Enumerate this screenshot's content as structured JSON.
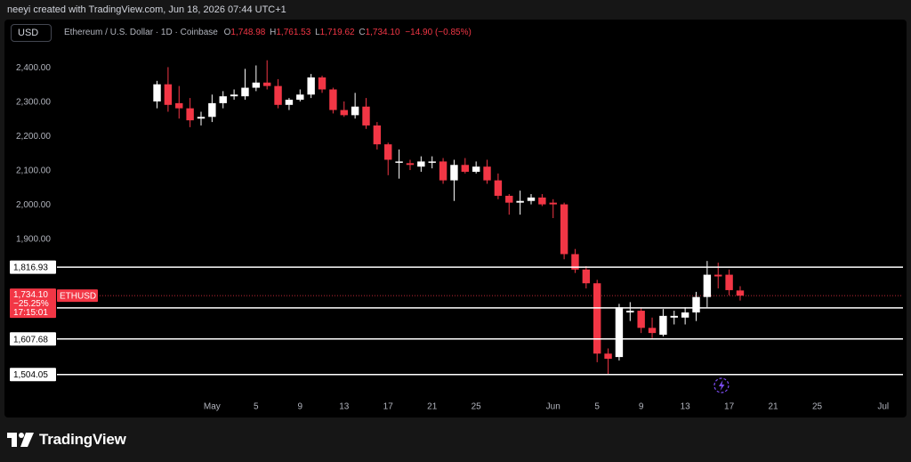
{
  "header": {
    "credit": "neeyi created with TradingView.com, Jun 18, 2026 07:44 UTC+1"
  },
  "toolbar": {
    "currency": "USD"
  },
  "legend": {
    "title": "Ethereum / U.S. Dollar · 1D · Coinbase",
    "o_label": "O",
    "o_value": "1,748.98",
    "h_label": "H",
    "h_value": "1,761.53",
    "l_label": "L",
    "l_value": "1,719.62",
    "c_label": "C",
    "c_value": "1,734.10",
    "change": "−14.90 (−0.85%)"
  },
  "price_label": {
    "price": "1,734.10",
    "change_pct": "−25.25%",
    "countdown": "17:15:01",
    "symbol": "ETHUSD"
  },
  "levels": [
    "1,816.93",
    "1,698.42",
    "1,607.68",
    "1,504.05"
  ],
  "footer": {
    "brand": "TradingView"
  },
  "colors": {
    "up": "#ffffff",
    "down": "#f23645",
    "background": "#000000",
    "level_line": "#ffffff",
    "axis_text": "#b2b5be",
    "icon": "#7b4cf0"
  },
  "icons": {
    "flash": "lightning-bolt-icon"
  },
  "chart_data": {
    "type": "candlestick",
    "title": "Ethereum / U.S. Dollar · 1D · Coinbase",
    "ylim": [
      1480,
      2440
    ],
    "x_range_day_index": [
      -14.1,
      62.8
    ],
    "y_ticks": [
      "2,400.00",
      "2,300.00",
      "2,200.00",
      "2,100.00",
      "2,000.00",
      "1,900.00"
    ],
    "x_ticks": [
      {
        "day": 0,
        "label": "May"
      },
      {
        "day": 4,
        "label": "5"
      },
      {
        "day": 8,
        "label": "9"
      },
      {
        "day": 12,
        "label": "13"
      },
      {
        "day": 16,
        "label": "17"
      },
      {
        "day": 20,
        "label": "21"
      },
      {
        "day": 24,
        "label": "25"
      },
      {
        "day": 31,
        "label": "Jun"
      },
      {
        "day": 35,
        "label": "5"
      },
      {
        "day": 39,
        "label": "9"
      },
      {
        "day": 43,
        "label": "13"
      },
      {
        "day": 47,
        "label": "17"
      },
      {
        "day": 51,
        "label": "21"
      },
      {
        "day": 55,
        "label": "25"
      },
      {
        "day": 61,
        "label": "Jul"
      }
    ],
    "grid": false,
    "horizontal_levels": [
      1816.93,
      1698.42,
      1607.68,
      1504.05
    ],
    "current_price": 1734.1,
    "candles": [
      {
        "day": -5,
        "o": 2300,
        "h": 2360,
        "l": 2280,
        "c": 2350
      },
      {
        "day": -4,
        "o": 2350,
        "h": 2400,
        "l": 2270,
        "c": 2290
      },
      {
        "day": -3,
        "o": 2295,
        "h": 2345,
        "l": 2250,
        "c": 2280
      },
      {
        "day": -2,
        "o": 2280,
        "h": 2310,
        "l": 2225,
        "c": 2245
      },
      {
        "day": -1,
        "o": 2250,
        "h": 2270,
        "l": 2230,
        "c": 2255
      },
      {
        "day": 0,
        "o": 2255,
        "h": 2320,
        "l": 2240,
        "c": 2295
      },
      {
        "day": 1,
        "o": 2295,
        "h": 2330,
        "l": 2280,
        "c": 2315
      },
      {
        "day": 2,
        "o": 2315,
        "h": 2335,
        "l": 2305,
        "c": 2320
      },
      {
        "day": 3,
        "o": 2315,
        "h": 2395,
        "l": 2305,
        "c": 2340
      },
      {
        "day": 4,
        "o": 2340,
        "h": 2405,
        "l": 2330,
        "c": 2355
      },
      {
        "day": 5,
        "o": 2355,
        "h": 2420,
        "l": 2335,
        "c": 2345
      },
      {
        "day": 6,
        "o": 2345,
        "h": 2365,
        "l": 2280,
        "c": 2290
      },
      {
        "day": 7,
        "o": 2290,
        "h": 2310,
        "l": 2275,
        "c": 2305
      },
      {
        "day": 8,
        "o": 2305,
        "h": 2335,
        "l": 2300,
        "c": 2320
      },
      {
        "day": 9,
        "o": 2320,
        "h": 2380,
        "l": 2310,
        "c": 2370
      },
      {
        "day": 10,
        "o": 2370,
        "h": 2375,
        "l": 2325,
        "c": 2335
      },
      {
        "day": 11,
        "o": 2335,
        "h": 2340,
        "l": 2265,
        "c": 2275
      },
      {
        "day": 12,
        "o": 2275,
        "h": 2300,
        "l": 2255,
        "c": 2260
      },
      {
        "day": 13,
        "o": 2260,
        "h": 2325,
        "l": 2250,
        "c": 2285
      },
      {
        "day": 14,
        "o": 2285,
        "h": 2310,
        "l": 2220,
        "c": 2230
      },
      {
        "day": 15,
        "o": 2230,
        "h": 2240,
        "l": 2160,
        "c": 2175
      },
      {
        "day": 16,
        "o": 2175,
        "h": 2180,
        "l": 2085,
        "c": 2130
      },
      {
        "day": 17,
        "o": 2125,
        "h": 2160,
        "l": 2075,
        "c": 2125
      },
      {
        "day": 18,
        "o": 2120,
        "h": 2130,
        "l": 2100,
        "c": 2115
      },
      {
        "day": 19,
        "o": 2110,
        "h": 2140,
        "l": 2095,
        "c": 2125
      },
      {
        "day": 20,
        "o": 2125,
        "h": 2140,
        "l": 2105,
        "c": 2125
      },
      {
        "day": 21,
        "o": 2125,
        "h": 2135,
        "l": 2060,
        "c": 2070
      },
      {
        "day": 22,
        "o": 2070,
        "h": 2130,
        "l": 2010,
        "c": 2115
      },
      {
        "day": 23,
        "o": 2115,
        "h": 2135,
        "l": 2090,
        "c": 2095
      },
      {
        "day": 24,
        "o": 2095,
        "h": 2125,
        "l": 2090,
        "c": 2110
      },
      {
        "day": 25,
        "o": 2110,
        "h": 2130,
        "l": 2060,
        "c": 2070
      },
      {
        "day": 26,
        "o": 2070,
        "h": 2090,
        "l": 2015,
        "c": 2025
      },
      {
        "day": 27,
        "o": 2025,
        "h": 2030,
        "l": 1970,
        "c": 2005
      },
      {
        "day": 28,
        "o": 2005,
        "h": 2040,
        "l": 1970,
        "c": 2010
      },
      {
        "day": 29,
        "o": 2010,
        "h": 2030,
        "l": 2000,
        "c": 2020
      },
      {
        "day": 30,
        "o": 2020,
        "h": 2030,
        "l": 1995,
        "c": 2000
      },
      {
        "day": 31,
        "o": 2005,
        "h": 2015,
        "l": 1960,
        "c": 2000
      },
      {
        "day": 32,
        "o": 2000,
        "h": 2005,
        "l": 1840,
        "c": 1855
      },
      {
        "day": 33,
        "o": 1855,
        "h": 1870,
        "l": 1800,
        "c": 1810
      },
      {
        "day": 34,
        "o": 1810,
        "h": 1820,
        "l": 1755,
        "c": 1770
      },
      {
        "day": 35,
        "o": 1770,
        "h": 1780,
        "l": 1540,
        "c": 1565
      },
      {
        "day": 36,
        "o": 1565,
        "h": 1580,
        "l": 1505,
        "c": 1550
      },
      {
        "day": 37,
        "o": 1555,
        "h": 1710,
        "l": 1545,
        "c": 1700
      },
      {
        "day": 38,
        "o": 1685,
        "h": 1715,
        "l": 1660,
        "c": 1690
      },
      {
        "day": 39,
        "o": 1690,
        "h": 1700,
        "l": 1625,
        "c": 1640
      },
      {
        "day": 40,
        "o": 1640,
        "h": 1670,
        "l": 1610,
        "c": 1625
      },
      {
        "day": 41,
        "o": 1620,
        "h": 1695,
        "l": 1615,
        "c": 1675
      },
      {
        "day": 42,
        "o": 1670,
        "h": 1690,
        "l": 1650,
        "c": 1675
      },
      {
        "day": 43,
        "o": 1670,
        "h": 1700,
        "l": 1650,
        "c": 1685
      },
      {
        "day": 44,
        "o": 1685,
        "h": 1745,
        "l": 1660,
        "c": 1730
      },
      {
        "day": 45,
        "o": 1730,
        "h": 1835,
        "l": 1700,
        "c": 1795
      },
      {
        "day": 46,
        "o": 1795,
        "h": 1830,
        "l": 1755,
        "c": 1790
      },
      {
        "day": 47,
        "o": 1795,
        "h": 1810,
        "l": 1735,
        "c": 1750
      },
      {
        "day": 48,
        "o": 1748.98,
        "h": 1761.53,
        "l": 1719.62,
        "c": 1734.1
      }
    ]
  }
}
